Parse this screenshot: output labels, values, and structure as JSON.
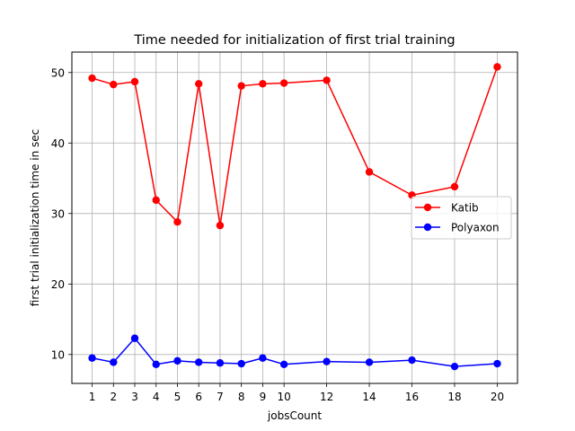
{
  "chart_data": {
    "type": "line",
    "title": "Time needed for initialization of first trial training",
    "xlabel": "jobsCount",
    "ylabel": "first trial initialization time in sec",
    "x": [
      1,
      2,
      3,
      4,
      5,
      6,
      7,
      8,
      9,
      10,
      12,
      14,
      16,
      18,
      20
    ],
    "xlim": [
      0.05,
      20.95
    ],
    "ylim": [
      5.9,
      52.9
    ],
    "xticks": [
      1,
      2,
      3,
      4,
      5,
      6,
      7,
      8,
      9,
      10,
      12,
      14,
      16,
      18,
      20
    ],
    "yticks": [
      10,
      20,
      30,
      40,
      50
    ],
    "grid": true,
    "legend_position": "center-right",
    "series": [
      {
        "name": "Katib",
        "color": "#ff0000",
        "marker": "circle",
        "values": [
          49.2,
          48.3,
          48.7,
          31.9,
          28.8,
          48.4,
          28.3,
          48.1,
          48.4,
          48.5,
          48.9,
          35.9,
          32.6,
          33.8,
          50.8
        ]
      },
      {
        "name": "Polyaxon",
        "color": "#0000ff",
        "marker": "circle",
        "values": [
          9.5,
          8.9,
          12.3,
          8.6,
          9.1,
          8.9,
          8.8,
          8.7,
          9.5,
          8.6,
          9.0,
          8.9,
          9.2,
          8.3,
          8.7
        ]
      }
    ]
  }
}
